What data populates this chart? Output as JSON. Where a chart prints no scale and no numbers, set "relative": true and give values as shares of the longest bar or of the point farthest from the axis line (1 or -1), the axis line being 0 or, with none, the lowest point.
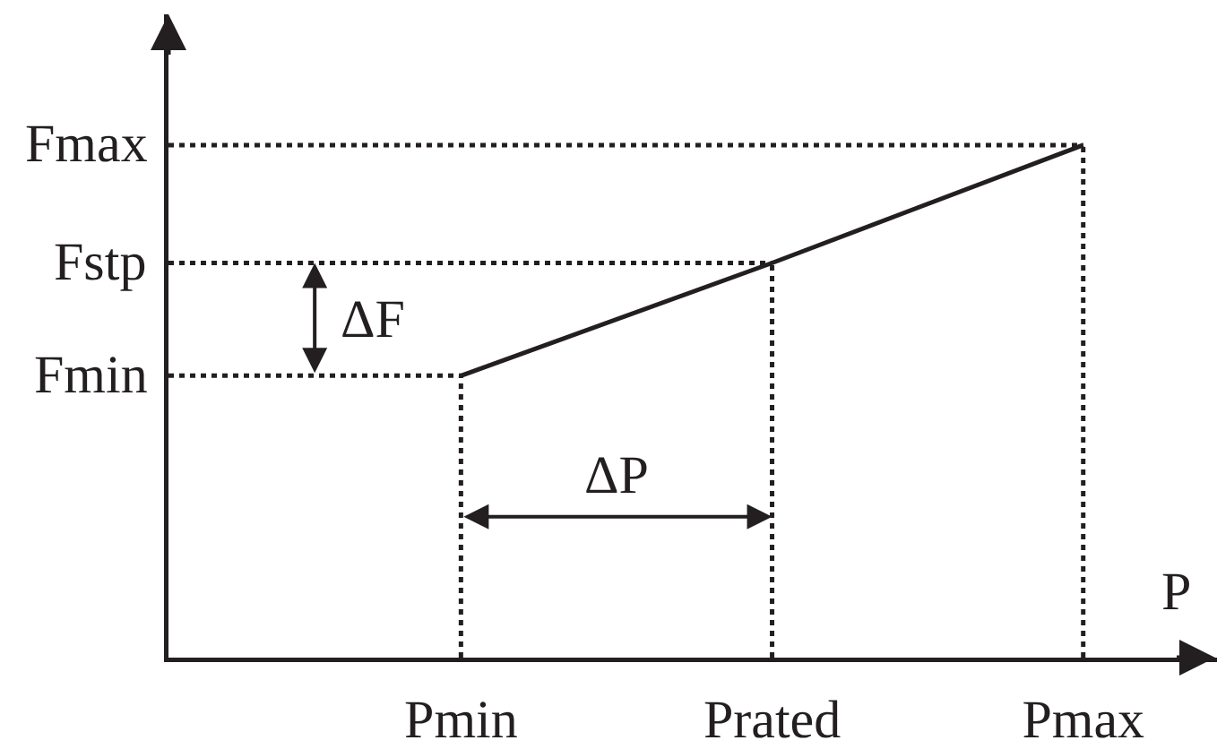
{
  "chart_data": {
    "type": "line",
    "relative": true,
    "categories": [
      "Pmin",
      "Prated",
      "Pmax"
    ],
    "series": [
      {
        "color": "#231f20",
        "values": [
          0.55,
          0.77,
          1
        ]
      }
    ],
    "xlabel": "P",
    "annotations": [
      "Fmin",
      "Fstp",
      "Fmax",
      "ΔF",
      "ΔP"
    ]
  }
}
